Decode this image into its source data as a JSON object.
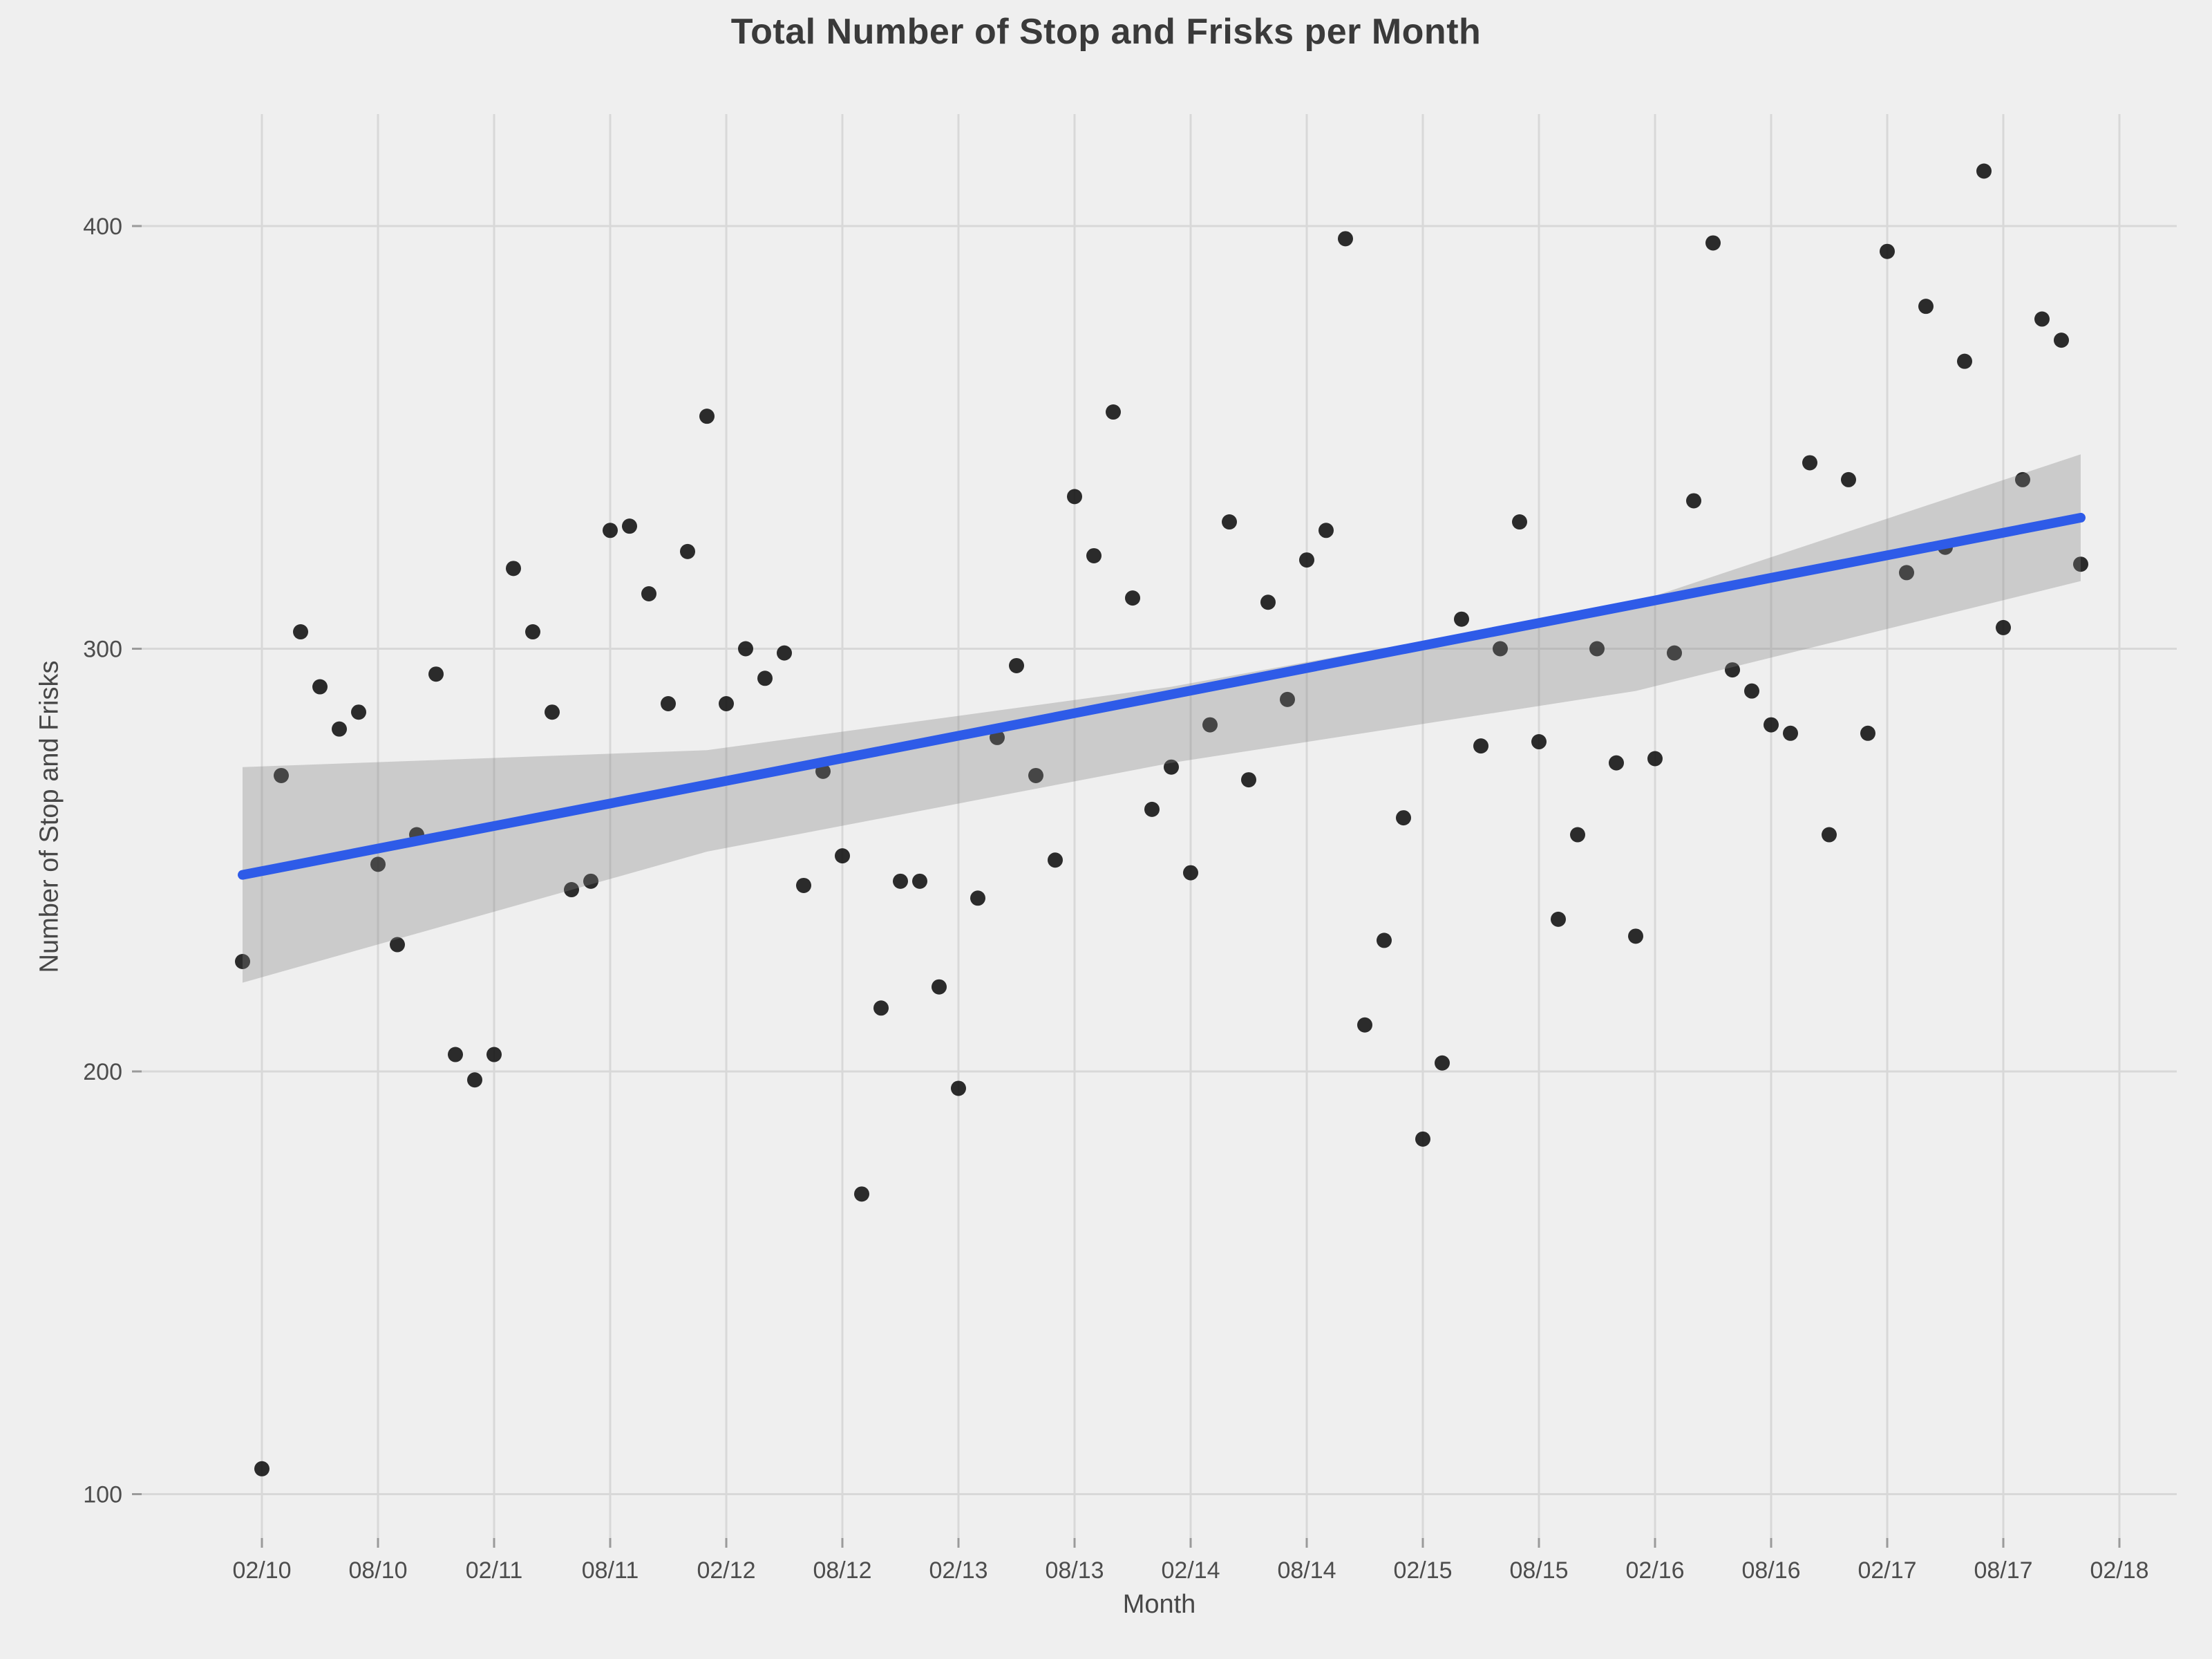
{
  "chart_data": {
    "type": "scatter",
    "title": "Total Number of Stop and Frisks per Month",
    "xlabel": "Month",
    "ylabel": "Number of Stop and Frisks",
    "legend": "none",
    "grid": "major-only",
    "x_tick_labels": [
      "02/10",
      "08/10",
      "02/11",
      "08/11",
      "02/12",
      "08/12",
      "02/13",
      "08/13",
      "02/14",
      "08/14",
      "02/15",
      "08/15",
      "02/16",
      "08/16",
      "02/17",
      "08/17",
      "02/18"
    ],
    "y_tick_labels": [
      "100",
      "200",
      "300",
      "400"
    ],
    "y_tick_values": [
      100,
      200,
      300,
      400
    ],
    "ylim": [
      90,
      426
    ],
    "month_labels": [
      "01/10",
      "02/10",
      "03/10",
      "04/10",
      "05/10",
      "06/10",
      "07/10",
      "08/10",
      "09/10",
      "10/10",
      "11/10",
      "12/10",
      "01/11",
      "02/11",
      "03/11",
      "04/11",
      "05/11",
      "06/11",
      "07/11",
      "08/11",
      "09/11",
      "10/11",
      "11/11",
      "12/11",
      "01/12",
      "02/12",
      "03/12",
      "04/12",
      "05/12",
      "06/12",
      "07/12",
      "08/12",
      "09/12",
      "10/12",
      "11/12",
      "12/12",
      "01/13",
      "02/13",
      "03/13",
      "04/13",
      "05/13",
      "06/13",
      "07/13",
      "08/13",
      "09/13",
      "10/13",
      "11/13",
      "12/13",
      "01/14",
      "02/14",
      "03/14",
      "04/14",
      "05/14",
      "06/14",
      "07/14",
      "08/14",
      "09/14",
      "10/14",
      "11/14",
      "12/14",
      "01/15",
      "02/15",
      "03/15",
      "04/15",
      "05/15",
      "06/15",
      "07/15",
      "08/15",
      "09/15",
      "10/15",
      "11/15",
      "12/15",
      "01/16",
      "02/16",
      "03/16",
      "04/16",
      "05/16",
      "06/16",
      "07/16",
      "08/16",
      "09/16",
      "10/16",
      "11/16",
      "12/16",
      "01/17",
      "02/17",
      "03/17",
      "04/17",
      "05/17",
      "06/17",
      "07/17",
      "08/17",
      "09/17",
      "10/17",
      "11/17",
      "12/17"
    ],
    "values": [
      226,
      106,
      270,
      304,
      291,
      281,
      285,
      249,
      230,
      256,
      294,
      204,
      198,
      204,
      319,
      304,
      285,
      243,
      245,
      328,
      329,
      313,
      287,
      323,
      355,
      287,
      300,
      293,
      299,
      244,
      271,
      251,
      171,
      215,
      245,
      245,
      220,
      196,
      241,
      279,
      296,
      270,
      250,
      336,
      322,
      356,
      312,
      262,
      272,
      247,
      282,
      330,
      269,
      311,
      288,
      321,
      328,
      397,
      211,
      231,
      260,
      184,
      202,
      307,
      277,
      300,
      330,
      278,
      236,
      256,
      300,
      273,
      232,
      274,
      299,
      335,
      396,
      295,
      290,
      282,
      280,
      344,
      256,
      340,
      280,
      394,
      318,
      381,
      324,
      368,
      413,
      305,
      340,
      378,
      373,
      320
    ],
    "trend_line": {
      "points_month_value": [
        [
          0,
          246.5
        ],
        [
          95,
          331
        ]
      ],
      "color": "#2e5be8"
    },
    "confidence_band": {
      "top_month_value": [
        [
          0,
          272
        ],
        [
          24,
          276
        ],
        [
          48,
          291
        ],
        [
          72,
          311
        ],
        [
          95,
          346
        ]
      ],
      "bottom_month_value": [
        [
          0,
          221
        ],
        [
          24,
          252
        ],
        [
          48,
          273
        ],
        [
          72,
          290
        ],
        [
          95,
          316
        ]
      ],
      "color": "rgba(128,128,128,0.32)"
    },
    "point_color": "#151515",
    "background_color": "#EFEFEF",
    "gridline_color": "#d8d8d8"
  },
  "labels": {
    "title": "Total Number of Stop and Frisks per Month",
    "x_axis": "Month",
    "y_axis": "Number of Stop and Frisks"
  }
}
